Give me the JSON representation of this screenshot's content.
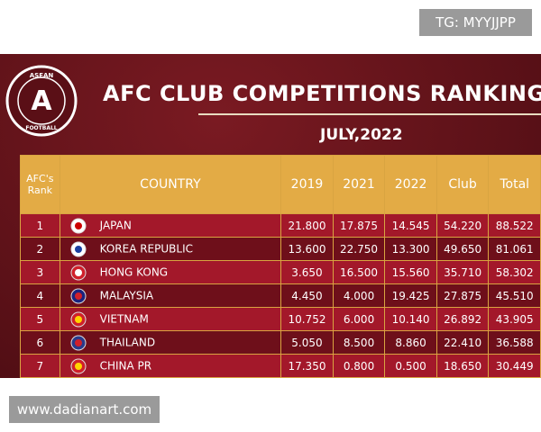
{
  "watermark_top": "TG: MYYJJPP",
  "logo": {
    "top": "ASEAN",
    "letter": "A",
    "bottom": "FOOTBALL"
  },
  "title": "AFC CLUB COMPETITIONS RANKING - E",
  "date": "JULY,2022",
  "table": {
    "header": [
      "AFC's Rank",
      "COUNTRY",
      "2019",
      "2021",
      "2022",
      "Club",
      "Total"
    ],
    "rows": [
      [
        "1",
        "JAPAN",
        "21.800",
        "17.875",
        "14.545",
        "54.220",
        "88.522"
      ],
      [
        "2",
        "KOREA REPUBLIC",
        "13.600",
        "22.750",
        "13.300",
        "49.650",
        "81.061"
      ],
      [
        "3",
        "HONG KONG",
        "3.650",
        "16.500",
        "15.560",
        "35.710",
        "58.302"
      ],
      [
        "4",
        "MALAYSIA",
        "4.450",
        "4.000",
        "19.425",
        "27.875",
        "45.510"
      ],
      [
        "5",
        "VIETNAM",
        "10.752",
        "6.000",
        "10.140",
        "26.892",
        "43.905"
      ],
      [
        "6",
        "THAILAND",
        "5.050",
        "8.500",
        "8.860",
        "22.410",
        "36.588"
      ],
      [
        "7",
        "CHINA PR",
        "17.350",
        "0.800",
        "0.500",
        "18.650",
        "30.449"
      ]
    ]
  },
  "watermark_bottom": "www.dadianart.com"
}
